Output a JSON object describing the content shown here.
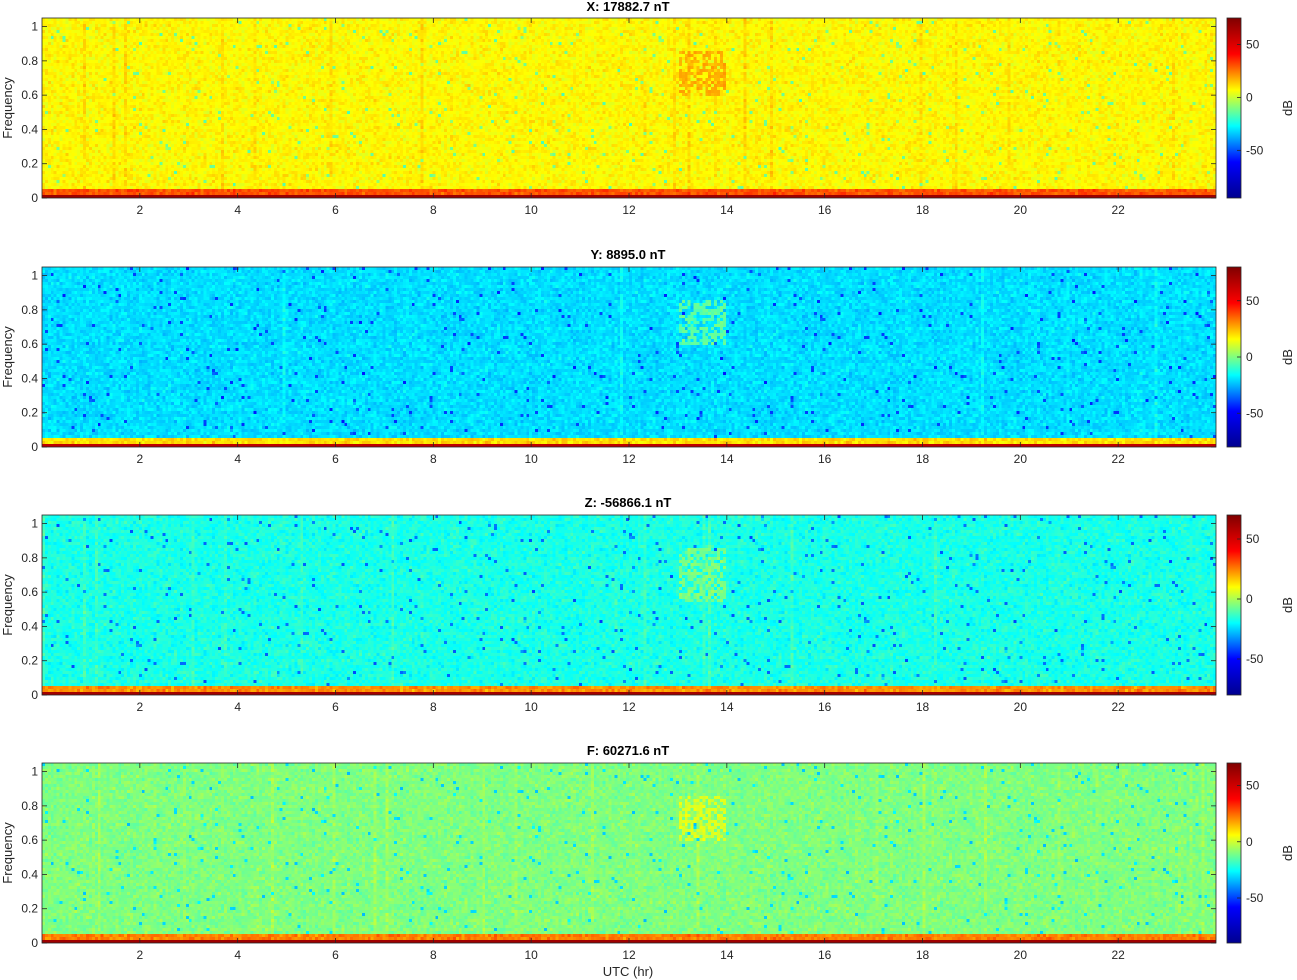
{
  "figure": {
    "xlabel": "UTC (hr)",
    "colormap": "jet",
    "colormap_stops": [
      "#00008f",
      "#0000ff",
      "#00ffff",
      "#ffff00",
      "#ff0000",
      "#800000"
    ]
  },
  "chart_data": [
    {
      "type": "heatmap",
      "title": "X: 17882.7 nT",
      "xlabel": "",
      "ylabel": "Frequency",
      "xlim": [
        0,
        24
      ],
      "ylim": [
        0,
        1.05
      ],
      "x_ticks": [
        2,
        4,
        6,
        8,
        10,
        12,
        14,
        16,
        18,
        20,
        22
      ],
      "y_ticks": [
        0,
        0.2,
        0.4,
        0.6,
        0.8,
        1
      ],
      "colorbar": {
        "label": "dB",
        "range": [
          -95,
          75
        ],
        "ticks": [
          -50,
          0,
          50
        ]
      },
      "background_level_db": 12,
      "low_frequency_band": {
        "freq_range": [
          0,
          0.05
        ],
        "level_db": 40,
        "bottom_level_db": 70
      },
      "features": [
        {
          "kind": "patch",
          "time_range": [
            13.0,
            14.0
          ],
          "freq_range": [
            0.6,
            0.85
          ],
          "level_db": 25
        }
      ]
    },
    {
      "type": "heatmap",
      "title": "Y: 8895.0 nT",
      "xlabel": "",
      "ylabel": "Frequency",
      "xlim": [
        0,
        24
      ],
      "ylim": [
        0,
        1.05
      ],
      "x_ticks": [
        2,
        4,
        6,
        8,
        10,
        12,
        14,
        16,
        18,
        20,
        22
      ],
      "y_ticks": [
        0,
        0.2,
        0.4,
        0.6,
        0.8,
        1
      ],
      "colorbar": {
        "label": "dB",
        "range": [
          -80,
          80
        ],
        "ticks": [
          -50,
          0,
          50
        ]
      },
      "background_level_db": -25,
      "low_frequency_band": {
        "freq_range": [
          0,
          0.05
        ],
        "level_db": 25,
        "bottom_level_db": 70
      },
      "features": [
        {
          "kind": "patch",
          "time_range": [
            13.0,
            14.0
          ],
          "freq_range": [
            0.6,
            0.85
          ],
          "level_db": -5
        }
      ]
    },
    {
      "type": "heatmap",
      "title": "Z: -56866.1 nT",
      "xlabel": "",
      "ylabel": "Frequency",
      "xlim": [
        0,
        24
      ],
      "ylim": [
        0,
        1.05
      ],
      "x_ticks": [
        2,
        4,
        6,
        8,
        10,
        12,
        14,
        16,
        18,
        20,
        22
      ],
      "y_ticks": [
        0,
        0.2,
        0.4,
        0.6,
        0.8,
        1
      ],
      "colorbar": {
        "label": "dB",
        "range": [
          -80,
          70
        ],
        "ticks": [
          -50,
          0,
          50
        ]
      },
      "background_level_db": -20,
      "low_frequency_band": {
        "freq_range": [
          0,
          0.06
        ],
        "level_db": 30,
        "bottom_level_db": 65
      },
      "features": [
        {
          "kind": "patch",
          "time_range": [
            13.0,
            14.0
          ],
          "freq_range": [
            0.55,
            0.85
          ],
          "level_db": -5
        }
      ]
    },
    {
      "type": "heatmap",
      "title": "F: 60271.6 nT",
      "xlabel": "UTC (hr)",
      "ylabel": "Frequency",
      "xlim": [
        0,
        24
      ],
      "ylim": [
        0,
        1.05
      ],
      "x_ticks": [
        2,
        4,
        6,
        8,
        10,
        12,
        14,
        16,
        18,
        20,
        22
      ],
      "y_ticks": [
        0,
        0.2,
        0.4,
        0.6,
        0.8,
        1
      ],
      "colorbar": {
        "label": "dB",
        "range": [
          -90,
          70
        ],
        "ticks": [
          -50,
          0,
          50
        ]
      },
      "background_level_db": -10,
      "low_frequency_band": {
        "freq_range": [
          0,
          0.05
        ],
        "level_db": 30,
        "bottom_level_db": 65
      },
      "features": [
        {
          "kind": "patch",
          "time_range": [
            13.0,
            14.0
          ],
          "freq_range": [
            0.6,
            0.85
          ],
          "level_db": 5
        }
      ]
    }
  ]
}
